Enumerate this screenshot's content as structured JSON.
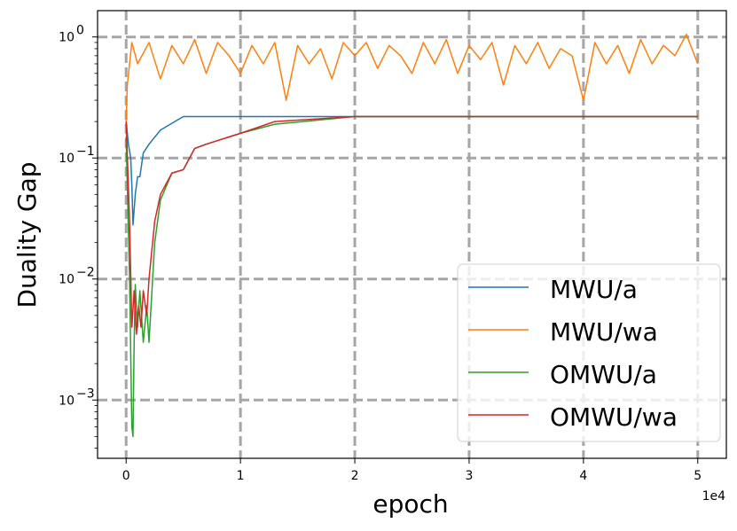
{
  "chart_data": {
    "type": "line",
    "xlabel": "epoch",
    "ylabel": "Duality Gap",
    "x_offset_label": "1e4",
    "x_ticks": [
      0,
      1,
      2,
      3,
      4,
      5
    ],
    "x_tick_labels": [
      "0",
      "1",
      "2",
      "3",
      "4",
      "5"
    ],
    "y_scale": "log",
    "y_tick_exponents": [
      -3,
      -2,
      -1,
      0
    ],
    "y_tick_labels": [
      "10",
      "10",
      "10",
      "10"
    ],
    "y_tick_label_exponents": [
      "−3",
      "−2",
      "−1",
      "0"
    ],
    "xlim": [
      -0.25,
      5.25
    ],
    "ylim": [
      0.00033,
      1.65
    ],
    "grid": true,
    "legend_position": "lower right",
    "series": [
      {
        "name": "MWU/a",
        "color": "#1f77b4",
        "x": [
          0,
          0.02,
          0.04,
          0.05,
          0.06,
          0.08,
          0.1,
          0.12,
          0.15,
          0.2,
          0.3,
          0.5,
          0.7,
          1.0,
          1.5,
          2.0,
          2.5,
          3.0,
          3.5,
          4.0,
          4.5,
          5.0
        ],
        "y": [
          0.2,
          0.13,
          0.1,
          0.06,
          0.028,
          0.05,
          0.07,
          0.07,
          0.11,
          0.13,
          0.17,
          0.22,
          0.22,
          0.22,
          0.22,
          0.22,
          0.22,
          0.22,
          0.22,
          0.22,
          0.22,
          0.22
        ]
      },
      {
        "name": "MWU/wa",
        "color": "#ff7f0e",
        "x": [
          0,
          0.01,
          0.05,
          0.1,
          0.2,
          0.3,
          0.4,
          0.5,
          0.6,
          0.7,
          0.8,
          0.9,
          1.0,
          1.1,
          1.2,
          1.3,
          1.4,
          1.5,
          1.6,
          1.7,
          1.8,
          1.9,
          2.0,
          2.1,
          2.2,
          2.3,
          2.4,
          2.5,
          2.6,
          2.7,
          2.8,
          2.9,
          3.0,
          3.1,
          3.2,
          3.3,
          3.4,
          3.5,
          3.6,
          3.7,
          3.8,
          3.9,
          4.0,
          4.1,
          4.2,
          4.3,
          4.4,
          4.5,
          4.6,
          4.7,
          4.8,
          4.9,
          5.0
        ],
        "y": [
          0.2,
          0.4,
          0.9,
          0.6,
          0.9,
          0.45,
          0.85,
          0.6,
          0.95,
          0.5,
          0.9,
          0.7,
          0.5,
          0.85,
          0.6,
          0.9,
          0.3,
          0.85,
          0.6,
          0.8,
          0.45,
          0.9,
          0.7,
          0.9,
          0.55,
          0.85,
          0.7,
          0.5,
          0.9,
          0.6,
          0.95,
          0.5,
          0.85,
          0.65,
          0.9,
          0.4,
          0.85,
          0.6,
          0.9,
          0.55,
          0.8,
          0.7,
          0.3,
          0.9,
          0.6,
          0.85,
          0.5,
          0.95,
          0.6,
          0.85,
          0.7,
          1.05,
          0.6
        ]
      },
      {
        "name": "OMWU/a",
        "color": "#2ca02c",
        "x": [
          0,
          0.03,
          0.05,
          0.06,
          0.07,
          0.08,
          0.1,
          0.12,
          0.15,
          0.18,
          0.2,
          0.25,
          0.3,
          0.4,
          0.5,
          0.6,
          0.7,
          1.0,
          1.3,
          2.0,
          3.0,
          4.0,
          5.0
        ],
        "y": [
          0.15,
          0.01,
          0.0006,
          0.0005,
          0.003,
          0.009,
          0.004,
          0.008,
          0.003,
          0.006,
          0.003,
          0.02,
          0.045,
          0.075,
          0.08,
          0.12,
          0.13,
          0.16,
          0.19,
          0.22,
          0.22,
          0.22,
          0.22
        ]
      },
      {
        "name": "OMWU/wa",
        "color": "#d62728",
        "x": [
          0,
          0.03,
          0.05,
          0.07,
          0.09,
          0.11,
          0.13,
          0.15,
          0.18,
          0.2,
          0.25,
          0.3,
          0.4,
          0.5,
          0.6,
          0.7,
          1.0,
          1.3,
          2.0,
          3.0,
          4.0,
          5.0
        ],
        "y": [
          0.2,
          0.03,
          0.004,
          0.008,
          0.0035,
          0.006,
          0.004,
          0.008,
          0.005,
          0.01,
          0.03,
          0.05,
          0.075,
          0.08,
          0.12,
          0.13,
          0.16,
          0.2,
          0.22,
          0.22,
          0.22,
          0.22
        ]
      }
    ]
  }
}
